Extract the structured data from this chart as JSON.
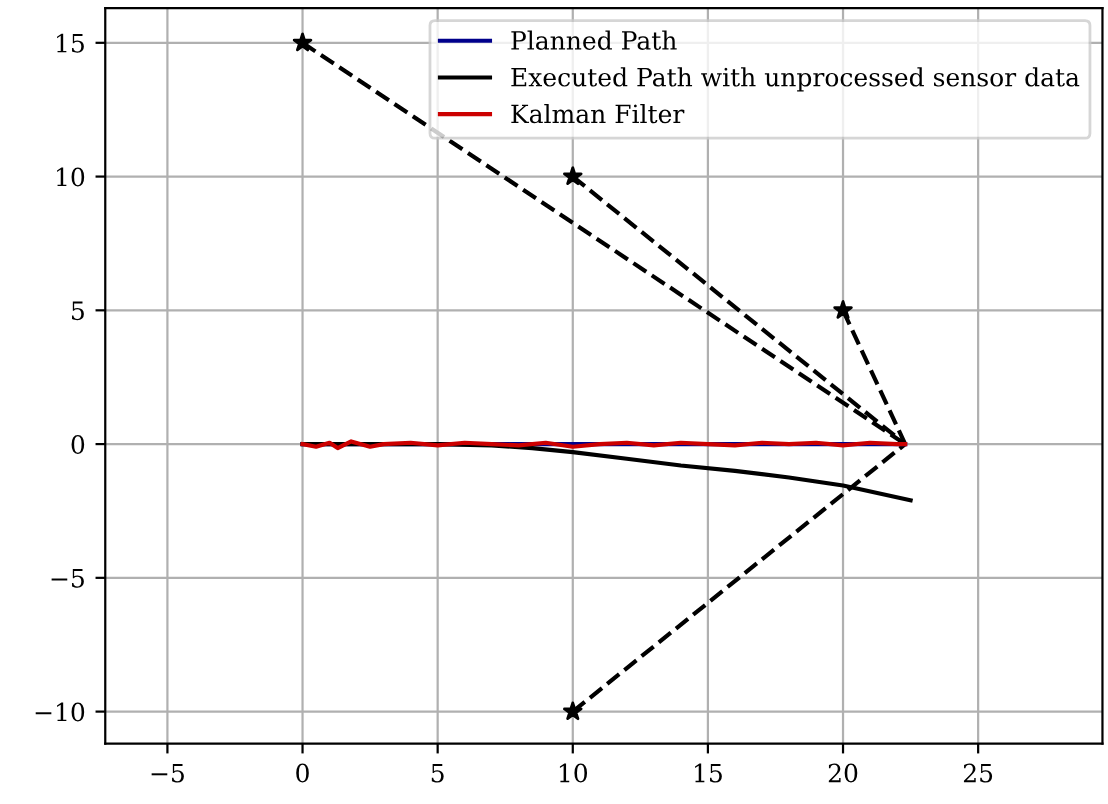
{
  "chart_data": {
    "type": "line",
    "xlim": [
      -7.3,
      29.6
    ],
    "ylim": [
      -11.2,
      16.3
    ],
    "xticks": [
      {
        "value": -5,
        "label": "−5"
      },
      0,
      5,
      10,
      15,
      20,
      25
    ],
    "yticks": [
      {
        "value": -10,
        "label": "−10"
      },
      {
        "value": -5,
        "label": "−5"
      },
      0,
      5,
      10,
      15
    ],
    "grid": true,
    "legend": "top right",
    "series": [
      {
        "line_style": "dashed",
        "color": "#000000",
        "x": [
          0,
          22.3
        ],
        "values": [
          15,
          0
        ]
      },
      {
        "line_style": "dashed",
        "color": "#000000",
        "x": [
          10,
          22.3
        ],
        "values": [
          10,
          0
        ]
      },
      {
        "line_style": "dashed",
        "color": "#000000",
        "x": [
          20,
          22.3
        ],
        "values": [
          5,
          0
        ]
      },
      {
        "line_style": "dashed",
        "color": "#000000",
        "x": [
          10,
          22.3
        ],
        "values": [
          -10,
          0
        ]
      },
      {
        "type": "scatter",
        "marker": "star",
        "color": "#000000",
        "x": [
          0,
          10,
          20,
          10
        ],
        "values": [
          15,
          10,
          5,
          -10
        ]
      },
      {
        "name": "Planned Path",
        "color": "#00008b",
        "x": [
          0,
          22.3
        ],
        "values": [
          0,
          0
        ]
      },
      {
        "name": "Executed Path with unprocessed sensor data",
        "color": "#000000",
        "x": [
          0,
          5,
          7,
          8.5,
          10,
          12,
          14,
          16,
          18,
          20,
          22.5
        ],
        "values": [
          0,
          0,
          -0.05,
          -0.15,
          -0.3,
          -0.55,
          -0.8,
          -1.0,
          -1.25,
          -1.55,
          -2.1
        ]
      },
      {
        "name": "Kalman Filter",
        "color": "#cc0000",
        "x": [
          0,
          0.5,
          1,
          1.3,
          1.8,
          2.5,
          3,
          4,
          5,
          6,
          7,
          8,
          9,
          10,
          11,
          12,
          13,
          14,
          15,
          16,
          17,
          18,
          19,
          20,
          21,
          22,
          22.3
        ],
        "values": [
          0,
          -0.1,
          0.05,
          -0.15,
          0.1,
          -0.1,
          0,
          0.05,
          -0.05,
          0.05,
          0,
          -0.05,
          0.05,
          -0.1,
          0,
          0.05,
          -0.05,
          0.05,
          0,
          -0.05,
          0.05,
          0,
          0.05,
          -0.05,
          0.05,
          0,
          0
        ]
      }
    ]
  }
}
